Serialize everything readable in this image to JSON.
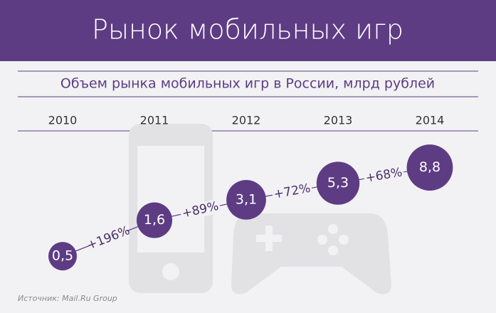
{
  "chart_data": {
    "type": "line",
    "title": "Рынок мобильных игр",
    "subtitle": "Объем рынка мобильных игр в России, млрд рублей",
    "categories": [
      "2010",
      "2011",
      "2012",
      "2013",
      "2014"
    ],
    "values": [
      0.5,
      1.6,
      3.1,
      5.3,
      8.8
    ],
    "value_labels": [
      "0,5",
      "1,6",
      "3,1",
      "5,3",
      "8,8"
    ],
    "growth_labels": [
      "+196%",
      "+89%",
      "+72%",
      "+68%"
    ],
    "color": "#5e3c84",
    "log_scale": true,
    "source": "Источник: Mail.Ru Group"
  }
}
